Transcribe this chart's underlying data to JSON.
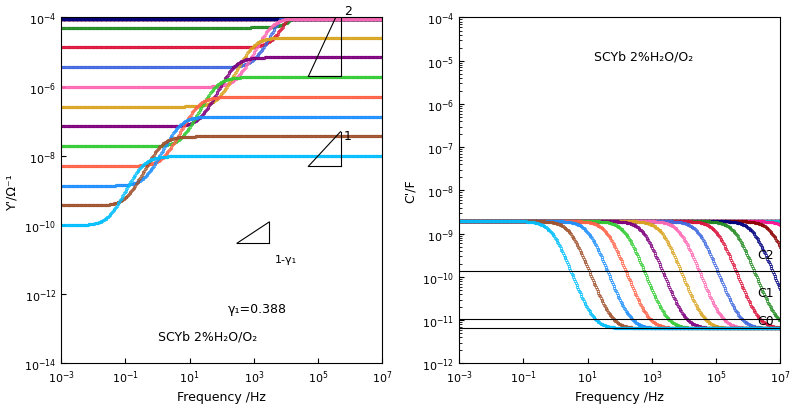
{
  "left_ylabel": "Y'/Ω⁻¹",
  "right_ylabel": "C'/F",
  "xlabel": "Frequency /Hz",
  "left_annotation1": "γ₁=0.388",
  "left_annotation2": "SCYb 2%H₂O/O₂",
  "right_annotation": "SCYb 2%H₂O/O₂",
  "left_xlim": [
    0.001,
    10000000.0
  ],
  "left_ylim": [
    1e-14,
    0.0001
  ],
  "right_xlim": [
    0.001,
    10000000.0
  ],
  "right_ylim": [
    1e-12,
    0.0001
  ],
  "c0_val": 6.5e-12,
  "c1_val": 1.05e-11,
  "c2_val": 1.4e-10,
  "n_series": 22,
  "gamma1": 0.388,
  "colors": [
    "#000000",
    "#ff0000",
    "#0000ff",
    "#ff00ff",
    "#008000",
    "#ff8c00",
    "#800080",
    "#00ced1",
    "#ff1493",
    "#8b0000",
    "#000080",
    "#228b22",
    "#dc143c",
    "#4169e1",
    "#ff69b4",
    "#daa520",
    "#7f007f",
    "#32cd32",
    "#ff6347",
    "#1e90ff",
    "#a0522d",
    "#00bfff"
  ]
}
